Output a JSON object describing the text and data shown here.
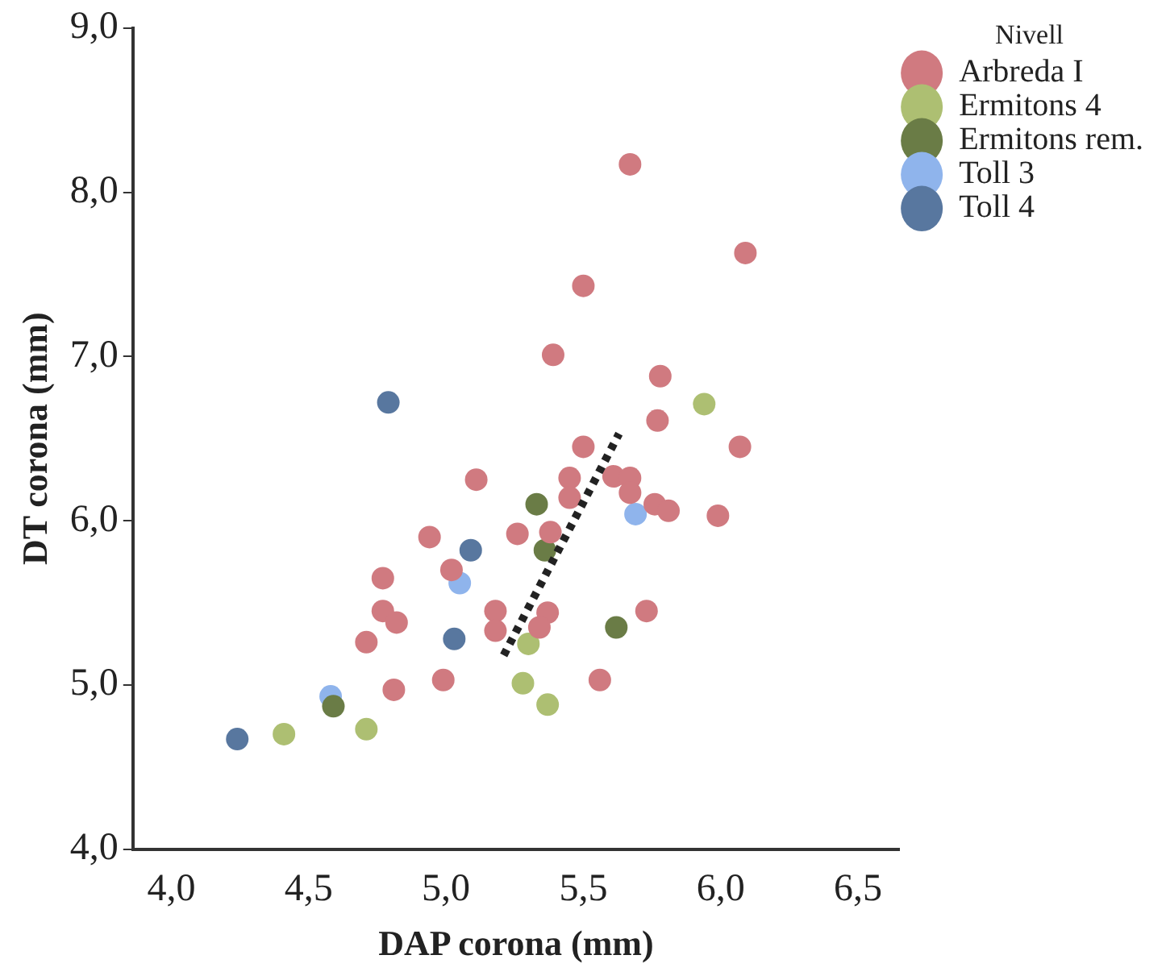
{
  "chart_data": {
    "type": "scatter",
    "xlabel": "DAP corona (mm)",
    "ylabel": "DT corona (mm)",
    "legend_title": "Nivell",
    "legend": "top right",
    "grid": false,
    "marker": "circle",
    "xlim": [
      3.86,
      6.65
    ],
    "ylim": [
      4.0,
      9.0
    ],
    "xticks": [
      {
        "value": 4,
        "label": "4,0"
      },
      {
        "value": 4.5,
        "label": "4,5"
      },
      {
        "value": 5,
        "label": "5,0"
      },
      {
        "value": 5.5,
        "label": "5,5"
      },
      {
        "value": 6,
        "label": "6,0"
      },
      {
        "value": 6.5,
        "label": "6,5"
      }
    ],
    "yticks": [
      {
        "value": 4,
        "label": "4,0"
      },
      {
        "value": 5,
        "label": "5,0"
      },
      {
        "value": 6,
        "label": "6,0"
      },
      {
        "value": 7,
        "label": "7,0"
      },
      {
        "value": 8,
        "label": "8,0"
      },
      {
        "value": 9,
        "label": "9,0"
      }
    ],
    "series": [
      {
        "name": "Arbreda I",
        "color": "#d07a80",
        "x": [
          5.11,
          4.94,
          5.26,
          5.02,
          4.77,
          4.77,
          4.82,
          5.18,
          5.18,
          4.71,
          4.99,
          4.81,
          5.67,
          6.09,
          5.5,
          5.39,
          5.78,
          5.77,
          6.07,
          5.5,
          5.45,
          5.61,
          5.67,
          5.67,
          5.45,
          5.76,
          5.81,
          5.99,
          5.38,
          5.73,
          5.37,
          5.34,
          5.56
        ],
        "values": [
          6.25,
          5.9,
          5.92,
          5.7,
          5.65,
          5.45,
          5.38,
          5.45,
          5.33,
          5.26,
          5.03,
          4.97,
          8.17,
          7.63,
          7.43,
          7.01,
          6.88,
          6.61,
          6.45,
          6.45,
          6.26,
          6.27,
          6.26,
          6.17,
          6.14,
          6.1,
          6.06,
          6.03,
          5.93,
          5.45,
          5.44,
          5.35,
          5.03
        ]
      },
      {
        "name": "Ermitons 4",
        "color": "#adbf72",
        "x": [
          4.41,
          4.71,
          5.28,
          5.37,
          5.3,
          5.94
        ],
        "values": [
          4.7,
          4.73,
          5.01,
          4.88,
          5.25,
          6.71
        ]
      },
      {
        "name": "Ermitons rem.",
        "color": "#6a7c46",
        "x": [
          4.59,
          5.33,
          5.36,
          5.62
        ],
        "values": [
          4.87,
          6.1,
          5.82,
          5.35
        ]
      },
      {
        "name": "Toll 3",
        "color": "#8fb4ec",
        "x": [
          4.58,
          5.05,
          5.69
        ],
        "values": [
          4.93,
          5.62,
          6.04
        ]
      },
      {
        "name": "Toll 4",
        "color": "#58779f",
        "x": [
          4.24,
          4.79,
          5.09,
          5.03
        ],
        "values": [
          4.67,
          6.72,
          5.82,
          5.28
        ]
      },
      {
        "type": "line",
        "color": "#222222",
        "line_style": "dotted",
        "marker": "none",
        "x": [
          5.21,
          5.63
        ],
        "values": [
          5.18,
          6.53
        ]
      }
    ]
  }
}
